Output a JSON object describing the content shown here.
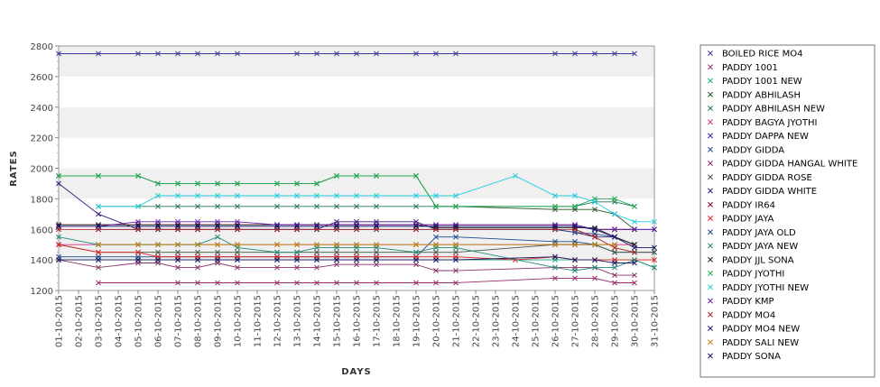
{
  "chart_data": {
    "type": "line",
    "title": "",
    "xlabel": "DAYS",
    "ylabel": "RATES",
    "ylim": [
      1200,
      2800
    ],
    "yticks": [
      1200,
      1400,
      1600,
      1800,
      2000,
      2200,
      2400,
      2600,
      2800
    ],
    "grid": "alternating horizontal bands",
    "legend": "right",
    "x": [
      "01-10-2015",
      "02-10-2015",
      "03-10-2015",
      "04-10-2015",
      "05-10-2015",
      "06-10-2015",
      "07-10-2015",
      "08-10-2015",
      "09-10-2015",
      "10-10-2015",
      "11-10-2015",
      "12-10-2015",
      "13-10-2015",
      "14-10-2015",
      "15-10-2015",
      "16-10-2015",
      "17-10-2015",
      "18-10-2015",
      "19-10-2015",
      "20-10-2015",
      "21-10-2015",
      "22-10-2015",
      "23-10-2015",
      "24-10-2015",
      "25-10-2015",
      "26-10-2015",
      "27-10-2015",
      "28-10-2015",
      "29-10-2015",
      "30-10-2015",
      "31-10-2015"
    ],
    "series": [
      {
        "name": "BOILED RICE MO4",
        "color": "#3a3a9a",
        "values": [
          2750,
          null,
          2750,
          null,
          2750,
          2750,
          2750,
          2750,
          2750,
          2750,
          null,
          null,
          2750,
          2750,
          2750,
          2750,
          2750,
          null,
          2750,
          2750,
          2750,
          null,
          null,
          null,
          null,
          2750,
          2750,
          2750,
          2750,
          2750,
          null
        ]
      },
      {
        "name": "PADDY 1001",
        "color": "#9a2a6a",
        "values": [
          null,
          null,
          1250,
          null,
          null,
          null,
          1250,
          1250,
          1250,
          1250,
          null,
          1250,
          1250,
          1250,
          1250,
          1250,
          1250,
          null,
          1250,
          1250,
          1250,
          null,
          null,
          null,
          null,
          1280,
          1280,
          1280,
          1250,
          1250,
          null
        ]
      },
      {
        "name": "PADDY 1001 NEW",
        "color": "#22aa88",
        "values": [
          1400,
          null,
          1400,
          null,
          1400,
          1400,
          1400,
          1400,
          1400,
          1400,
          null,
          1400,
          1400,
          1400,
          1400,
          1400,
          1400,
          null,
          1400,
          1400,
          1400,
          null,
          null,
          null,
          null,
          1400,
          1400,
          1400,
          1400,
          1400,
          1350
        ]
      },
      {
        "name": "PADDY ABHILASH",
        "color": "#225522",
        "values": [
          1950,
          null,
          1950,
          null,
          1950,
          1900,
          1900,
          1900,
          1900,
          1900,
          null,
          1900,
          1900,
          1900,
          1950,
          1950,
          1950,
          null,
          1950,
          1750,
          1750,
          null,
          null,
          null,
          null,
          1730,
          1730,
          1730,
          1700,
          1600,
          null
        ]
      },
      {
        "name": "PADDY ABHILASH NEW",
        "color": "#227755",
        "values": [
          null,
          null,
          1750,
          null,
          1750,
          1750,
          1750,
          1750,
          1750,
          1750,
          null,
          1750,
          1750,
          1750,
          1750,
          1750,
          1750,
          null,
          1750,
          1750,
          1750,
          null,
          null,
          null,
          null,
          1750,
          1750,
          1780,
          1780,
          1750,
          null
        ]
      },
      {
        "name": "PADDY BAGYA JYOTHI",
        "color": "#cc3388",
        "values": [
          1500,
          null,
          1500,
          null,
          1500,
          1500,
          1500,
          1500,
          1500,
          1500,
          null,
          1500,
          1500,
          1500,
          1500,
          1500,
          1500,
          null,
          1500,
          1500,
          1500,
          null,
          null,
          null,
          null,
          1500,
          1500,
          1500,
          1500,
          1500,
          null
        ]
      },
      {
        "name": "PADDY DAPPA NEW",
        "color": "#2a2aa0",
        "values": [
          1620,
          null,
          1620,
          null,
          1620,
          1620,
          1620,
          1620,
          1620,
          1620,
          null,
          1620,
          1620,
          1620,
          1620,
          1620,
          1620,
          null,
          1620,
          1620,
          1620,
          null,
          null,
          null,
          null,
          1620,
          1620,
          1600,
          1600,
          1600,
          1600
        ]
      },
      {
        "name": "PADDY GIDDA",
        "color": "#1a4a8a",
        "values": [
          1420,
          null,
          1420,
          null,
          1420,
          1420,
          1420,
          1420,
          1420,
          1420,
          null,
          1420,
          1420,
          1420,
          1420,
          1420,
          1420,
          null,
          1420,
          1550,
          1550,
          null,
          null,
          null,
          null,
          1520,
          1520,
          1500,
          1450,
          1450,
          1450
        ]
      },
      {
        "name": "PADDY GIDDA HANGAL WHITE",
        "color": "#883366",
        "values": [
          1400,
          null,
          1350,
          null,
          1380,
          1380,
          1350,
          1350,
          1380,
          1350,
          null,
          1350,
          1350,
          1350,
          1370,
          1370,
          1370,
          null,
          1370,
          1330,
          1330,
          null,
          null,
          null,
          null,
          1350,
          1350,
          1350,
          1300,
          1300,
          null
        ]
      },
      {
        "name": "PADDY GIDDA ROSE",
        "color": "#445544",
        "values": [
          1500,
          null,
          1450,
          null,
          1450,
          1450,
          1450,
          1450,
          1450,
          1450,
          null,
          1450,
          1450,
          1450,
          1450,
          1450,
          1450,
          null,
          1450,
          1450,
          1450,
          null,
          null,
          null,
          null,
          1500,
          1500,
          1500,
          1450,
          1450,
          1450
        ]
      },
      {
        "name": "PADDY GIDDA WHITE",
        "color": "#3a1a7a",
        "values": [
          1900,
          null,
          1700,
          null,
          1600,
          1600,
          1600,
          1600,
          1600,
          1600,
          null,
          1600,
          1600,
          1600,
          1650,
          1650,
          1650,
          null,
          1650,
          1600,
          1600,
          null,
          null,
          null,
          null,
          1600,
          1580,
          1550,
          1550,
          1500,
          null
        ]
      },
      {
        "name": "PADDY IR64",
        "color": "#880022",
        "values": [
          1630,
          null,
          1630,
          null,
          1630,
          1630,
          1630,
          1630,
          1630,
          1630,
          null,
          1630,
          1630,
          1630,
          1630,
          1630,
          1630,
          null,
          1630,
          1630,
          1630,
          null,
          null,
          null,
          null,
          1630,
          1630,
          1600,
          1600,
          1600,
          null
        ]
      },
      {
        "name": "PADDY JAYA",
        "color": "#dd2222",
        "values": [
          1500,
          null,
          1450,
          null,
          1450,
          1420,
          1420,
          1420,
          1420,
          1420,
          null,
          1420,
          1420,
          1420,
          1420,
          1420,
          1420,
          null,
          1420,
          1420,
          1420,
          null,
          null,
          1400,
          null,
          1420,
          1400,
          1400,
          1400,
          1400,
          1400
        ]
      },
      {
        "name": "PADDY JAYA  OLD",
        "color": "#224488",
        "values": [
          null,
          null,
          1600,
          null,
          1600,
          1600,
          1600,
          1600,
          1600,
          1600,
          null,
          1600,
          1600,
          1600,
          1600,
          1600,
          1600,
          null,
          1600,
          1600,
          1600,
          null,
          null,
          null,
          null,
          1600,
          1580,
          1570,
          1550,
          1500,
          null
        ]
      },
      {
        "name": "PADDY JAYA NEW",
        "color": "#228877",
        "values": [
          1550,
          null,
          1500,
          null,
          1500,
          1500,
          1500,
          1500,
          1550,
          1480,
          null,
          1450,
          1450,
          1480,
          1480,
          1480,
          1480,
          null,
          1450,
          1480,
          1480,
          null,
          null,
          null,
          null,
          1350,
          1330,
          1350,
          1350,
          1400,
          1350
        ]
      },
      {
        "name": "PADDY JJL SONA",
        "color": "#222222",
        "values": [
          1630,
          null,
          1630,
          null,
          1630,
          1630,
          1630,
          1630,
          1630,
          1630,
          null,
          1630,
          1630,
          1630,
          1630,
          1630,
          1630,
          null,
          1630,
          1610,
          1610,
          null,
          null,
          null,
          null,
          1610,
          1610,
          1610,
          1550,
          1500,
          null
        ]
      },
      {
        "name": "PADDY JYOTHI",
        "color": "#22aa55",
        "values": [
          1950,
          null,
          1950,
          null,
          1950,
          1900,
          1900,
          1900,
          1900,
          1900,
          null,
          1900,
          1900,
          1900,
          1950,
          1950,
          1950,
          null,
          1950,
          1750,
          1750,
          null,
          null,
          null,
          null,
          1750,
          1750,
          1800,
          1800,
          1750,
          null
        ]
      },
      {
        "name": "PADDY JYOTHI NEW",
        "color": "#22ccdd",
        "values": [
          null,
          null,
          1750,
          null,
          1750,
          1820,
          1820,
          1820,
          1820,
          1820,
          null,
          1820,
          1820,
          1820,
          1820,
          1820,
          1820,
          null,
          1820,
          1820,
          1820,
          null,
          null,
          1950,
          null,
          1820,
          1820,
          1780,
          1700,
          1650,
          1650
        ]
      },
      {
        "name": "PADDY KMP",
        "color": "#6622aa",
        "values": [
          1620,
          null,
          1620,
          null,
          1650,
          1650,
          1650,
          1650,
          1650,
          1650,
          null,
          1630,
          1630,
          1630,
          1630,
          1630,
          1630,
          null,
          1630,
          1630,
          1630,
          null,
          null,
          null,
          null,
          1630,
          1630,
          1600,
          1600,
          1600,
          1600
        ]
      },
      {
        "name": "PADDY MO4",
        "color": "#aa2222",
        "values": [
          1600,
          null,
          1600,
          null,
          1600,
          1600,
          1600,
          1600,
          1600,
          1600,
          null,
          1600,
          1600,
          1600,
          1600,
          1600,
          1600,
          null,
          1600,
          1600,
          1600,
          null,
          null,
          null,
          null,
          1600,
          1600,
          1550,
          1480,
          1450,
          null
        ]
      },
      {
        "name": "PADDY MO4 NEW",
        "color": "#1a1a66",
        "values": [
          1620,
          null,
          1620,
          null,
          1620,
          1620,
          1620,
          1620,
          1620,
          1620,
          null,
          1620,
          1620,
          1620,
          1620,
          1620,
          1620,
          null,
          1620,
          1620,
          1620,
          null,
          null,
          null,
          null,
          1620,
          1620,
          1600,
          1550,
          1480,
          1480
        ]
      },
      {
        "name": "PADDY SALI NEW",
        "color": "#b8860b",
        "values": [
          null,
          null,
          1500,
          null,
          1500,
          1500,
          1500,
          1500,
          1500,
          1500,
          null,
          1500,
          1500,
          1500,
          1500,
          1500,
          1500,
          null,
          1500,
          1500,
          1500,
          null,
          null,
          null,
          null,
          1500,
          1500,
          1500,
          1500,
          null,
          null
        ]
      },
      {
        "name": "PADDY SONA",
        "color": "#1a1a66",
        "values": [
          1400,
          null,
          1400,
          null,
          1400,
          1400,
          1400,
          1400,
          1400,
          1400,
          null,
          1400,
          1400,
          1400,
          1400,
          1400,
          1400,
          null,
          1400,
          1400,
          1400,
          null,
          null,
          null,
          null,
          1420,
          1400,
          1400,
          1380,
          1380,
          null
        ]
      }
    ]
  }
}
